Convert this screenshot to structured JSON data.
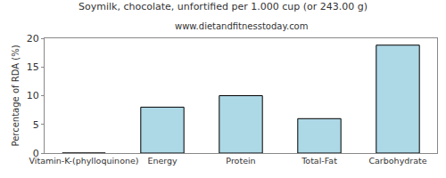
{
  "chart_data": {
    "type": "bar",
    "title": "Soymilk, chocolate, unfortified per 1.000 cup (or 243.00 g)",
    "subtitle": "www.dietandfitnesstoday.com",
    "y_label": "Percentage of RDA (%)",
    "categories": [
      "Vitamin-K-(phylloquinone)",
      "Energy",
      "Protein",
      "Total-Fat",
      "Carbohydrate"
    ],
    "values": [
      0,
      8,
      10,
      6,
      18.8
    ],
    "color": "#add8e6",
    "ylim": [
      0,
      20
    ],
    "yticks": [
      0,
      5,
      10,
      15,
      20
    ],
    "grid": false
  }
}
